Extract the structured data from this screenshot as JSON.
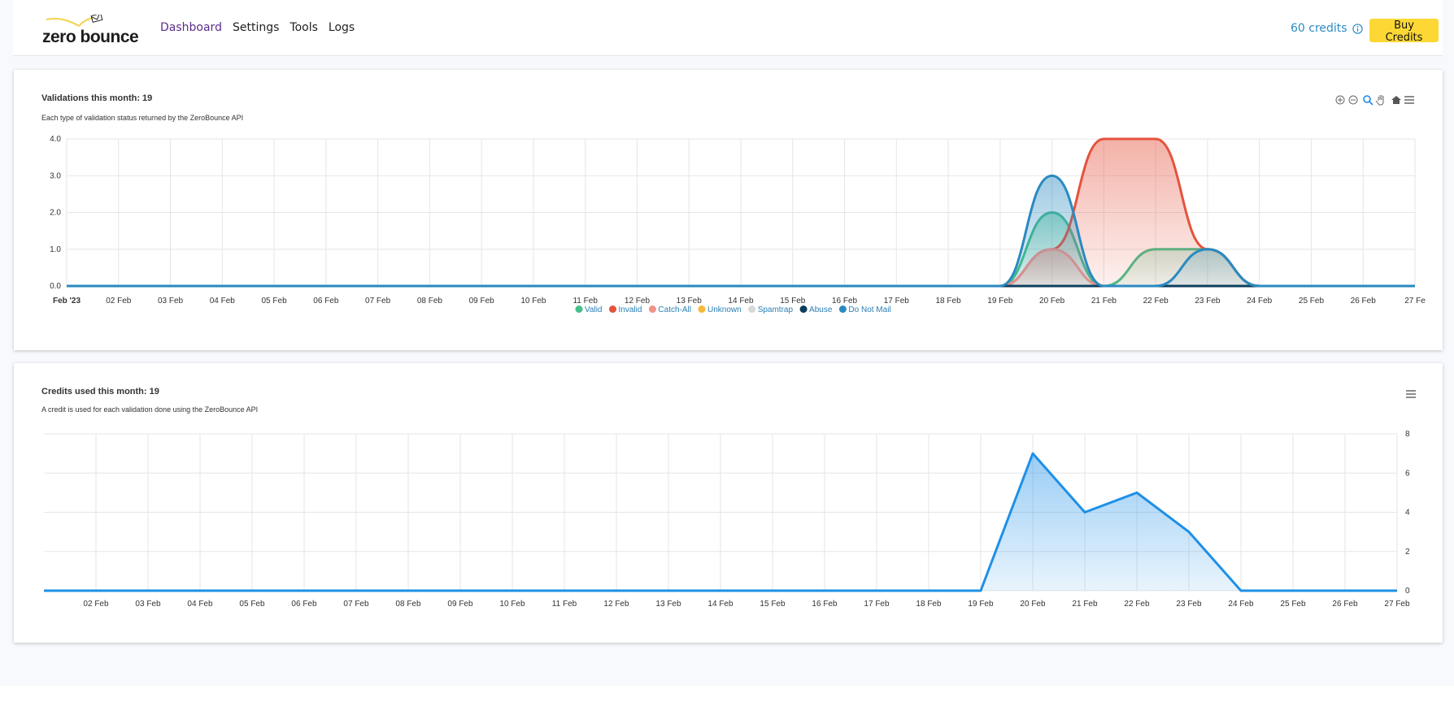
{
  "header": {
    "logo_text": "zero bounce",
    "nav": [
      {
        "label": "Dashboard",
        "active": true
      },
      {
        "label": "Settings"
      },
      {
        "label": "Tools"
      },
      {
        "label": "Logs"
      }
    ],
    "credits": "60 credits",
    "credits_icon": "info-icon",
    "buy_label": "Buy Credits",
    "accent_color": "#fdd835"
  },
  "validations": {
    "title": "Validations this month: 19",
    "subtitle": "Each type of validation status returned by the ZeroBounce API",
    "toolbar_icons": [
      "zoom-in-icon",
      "zoom-out-icon",
      "selection-zoom-icon",
      "pan-hand-icon",
      "reset-home-icon",
      "menu-icon"
    ]
  },
  "credits_used": {
    "title": "Credits used this month: 19",
    "subtitle": "A credit is used for each validation done using the ZeroBounce API",
    "menu_icon": "menu-icon"
  },
  "chart_data": [
    {
      "type": "area",
      "smoothing": "spline",
      "categories": [
        "Feb '23",
        "02 Feb",
        "03 Feb",
        "04 Feb",
        "05 Feb",
        "06 Feb",
        "07 Feb",
        "08 Feb",
        "09 Feb",
        "10 Feb",
        "11 Feb",
        "12 Feb",
        "13 Feb",
        "14 Feb",
        "15 Feb",
        "16 Feb",
        "17 Feb",
        "18 Feb",
        "19 Feb",
        "20 Feb",
        "21 Feb",
        "22 Feb",
        "23 Feb",
        "24 Feb",
        "25 Feb",
        "26 Feb",
        "27 Fe"
      ],
      "ylim": [
        0,
        4
      ],
      "yticks": [
        "0.0",
        "1.0",
        "2.0",
        "3.0",
        "4.0"
      ],
      "grid": true,
      "legend_position": "bottom",
      "series": [
        {
          "name": "Valid",
          "color": "#45c08c",
          "values": [
            0,
            0,
            0,
            0,
            0,
            0,
            0,
            0,
            0,
            0,
            0,
            0,
            0,
            0,
            0,
            0,
            0,
            0,
            0,
            2,
            0,
            1,
            1,
            0,
            0,
            0,
            0
          ]
        },
        {
          "name": "Invalid",
          "color": "#e5533d",
          "values": [
            0,
            0,
            0,
            0,
            0,
            0,
            0,
            0,
            0,
            0,
            0,
            0,
            0,
            0,
            0,
            0,
            0,
            0,
            0,
            1,
            4,
            4,
            1,
            0,
            0,
            0,
            0
          ]
        },
        {
          "name": "Catch-All",
          "color": "#f0938a",
          "values": [
            0,
            0,
            0,
            0,
            0,
            0,
            0,
            0,
            0,
            0,
            0,
            0,
            0,
            0,
            0,
            0,
            0,
            0,
            0,
            1,
            0,
            0,
            0,
            0,
            0,
            0,
            0
          ]
        },
        {
          "name": "Unknown",
          "color": "#f6b93b",
          "values": [
            0,
            0,
            0,
            0,
            0,
            0,
            0,
            0,
            0,
            0,
            0,
            0,
            0,
            0,
            0,
            0,
            0,
            0,
            0,
            0,
            0,
            0,
            0,
            0,
            0,
            0,
            0
          ]
        },
        {
          "name": "Spamtrap",
          "color": "#d8d8d8",
          "values": [
            0,
            0,
            0,
            0,
            0,
            0,
            0,
            0,
            0,
            0,
            0,
            0,
            0,
            0,
            0,
            0,
            0,
            0,
            0,
            0,
            0,
            0,
            0,
            0,
            0,
            0,
            0
          ]
        },
        {
          "name": "Abuse",
          "color": "#0c3c5a",
          "values": [
            0,
            0,
            0,
            0,
            0,
            0,
            0,
            0,
            0,
            0,
            0,
            0,
            0,
            0,
            0,
            0,
            0,
            0,
            0,
            0,
            0,
            0,
            0,
            0,
            0,
            0,
            0
          ]
        },
        {
          "name": "Do Not Mail",
          "color": "#2a8ac0",
          "values": [
            0,
            0,
            0,
            0,
            0,
            0,
            0,
            0,
            0,
            0,
            0,
            0,
            0,
            0,
            0,
            0,
            0,
            0,
            0,
            3,
            0,
            0,
            1,
            0,
            0,
            0,
            0
          ]
        }
      ]
    },
    {
      "type": "area",
      "categories": [
        "",
        "02 Feb",
        "03 Feb",
        "04 Feb",
        "05 Feb",
        "06 Feb",
        "07 Feb",
        "08 Feb",
        "09 Feb",
        "10 Feb",
        "11 Feb",
        "12 Feb",
        "13 Feb",
        "14 Feb",
        "15 Feb",
        "16 Feb",
        "17 Feb",
        "18 Feb",
        "19 Feb",
        "20 Feb",
        "21 Feb",
        "22 Feb",
        "23 Feb",
        "24 Feb",
        "25 Feb",
        "26 Feb",
        "27 Feb"
      ],
      "ylim": [
        0,
        8
      ],
      "yticks": [
        "0",
        "2",
        "4",
        "6",
        "8"
      ],
      "y_axis_side": "right",
      "grid": true,
      "color": "#1e90e8",
      "values": [
        0,
        0,
        0,
        0,
        0,
        0,
        0,
        0,
        0,
        0,
        0,
        0,
        0,
        0,
        0,
        0,
        0,
        0,
        0,
        7,
        4,
        5,
        3,
        0,
        0,
        0,
        0
      ]
    }
  ]
}
